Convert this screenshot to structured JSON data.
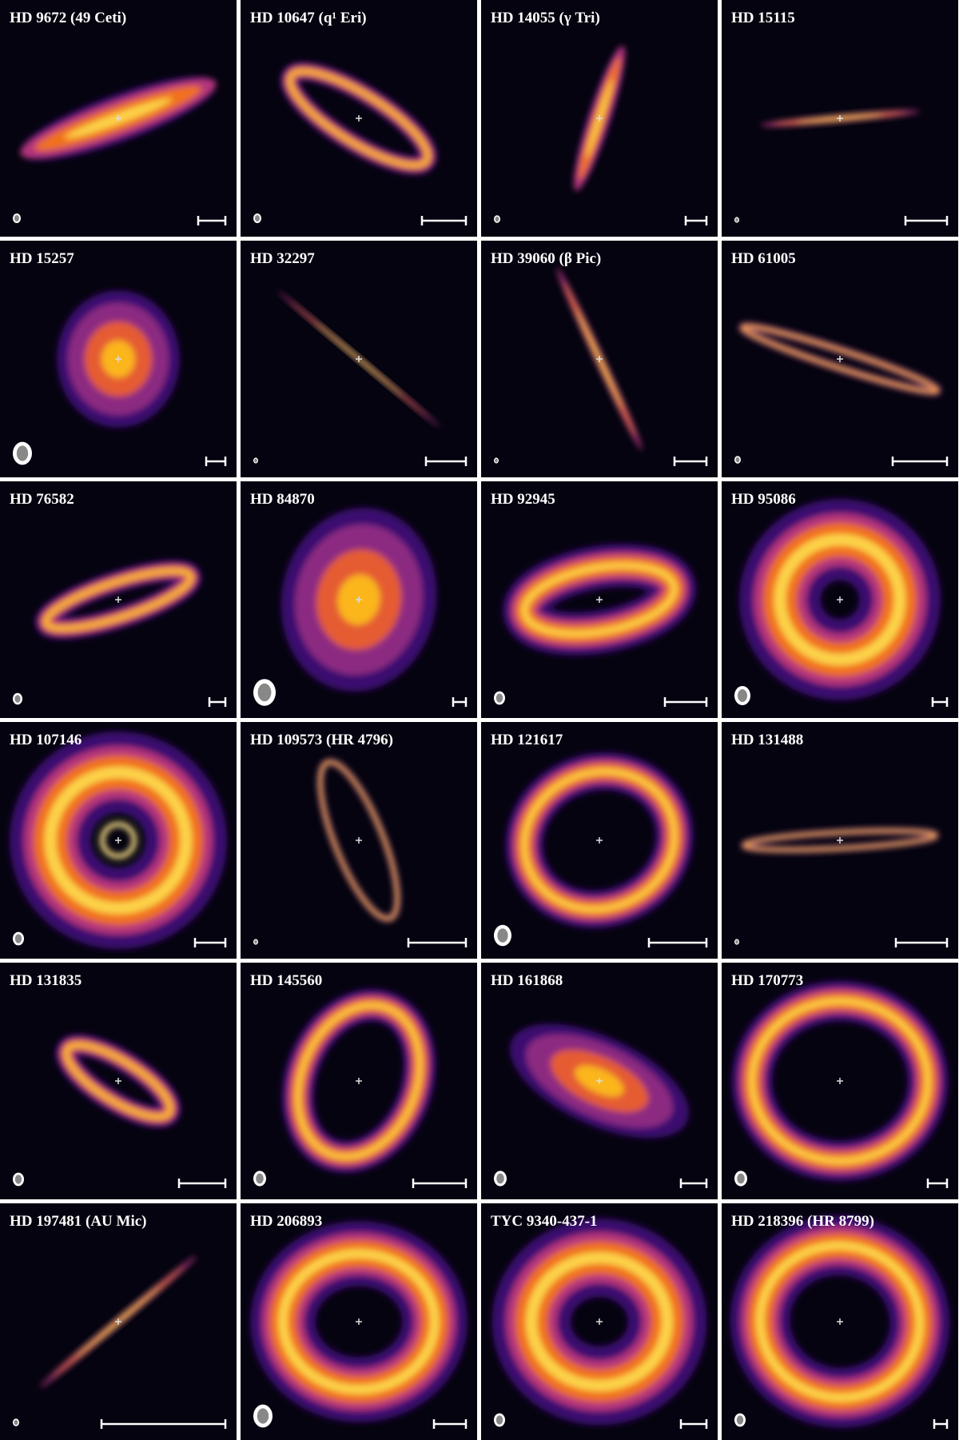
{
  "panels": [
    {
      "title": "HD 9672 (49 Ceti)"
    },
    {
      "title": "HD 10647 (q¹ Eri)"
    },
    {
      "title": "HD 14055 (γ Tri)"
    },
    {
      "title": "HD 15115"
    },
    {
      "title": "HD 15257"
    },
    {
      "title": "HD 32297"
    },
    {
      "title": "HD 39060 (β Pic)"
    },
    {
      "title": "HD 61005"
    },
    {
      "title": "HD 76582"
    },
    {
      "title": "HD 84870"
    },
    {
      "title": "HD 92945"
    },
    {
      "title": "HD 95086"
    },
    {
      "title": "HD 107146"
    },
    {
      "title": "HD 109573 (HR 4796)"
    },
    {
      "title": "HD 121617"
    },
    {
      "title": "HD 131488"
    },
    {
      "title": "HD 131835"
    },
    {
      "title": "HD 145560"
    },
    {
      "title": "HD 161868"
    },
    {
      "title": "HD 170773"
    },
    {
      "title": "HD 197481 (AU Mic)"
    },
    {
      "title": "HD 206893"
    },
    {
      "title": "TYC 9340-437-1"
    },
    {
      "title": "HD 218396 (HR 8799)"
    }
  ]
}
